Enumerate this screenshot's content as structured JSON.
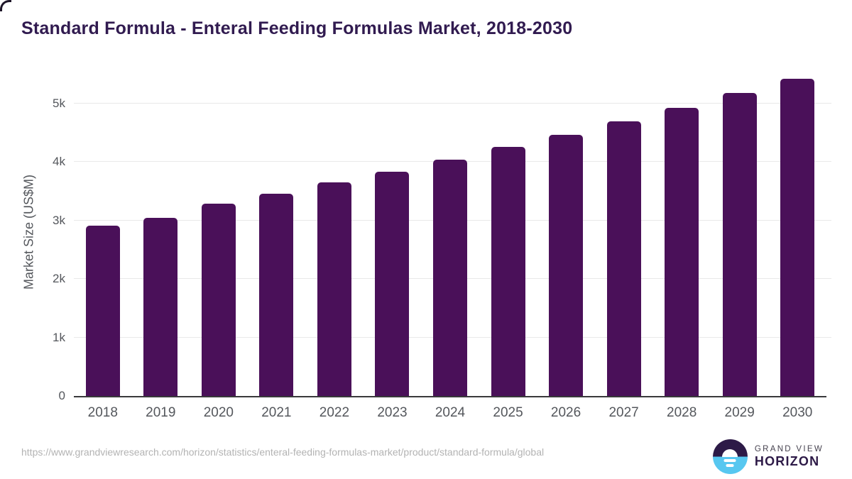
{
  "chart_data": {
    "type": "bar",
    "title": "Standard Formula - Enteral Feeding Formulas Market, 2018-2030",
    "categories": [
      "2018",
      "2019",
      "2020",
      "2021",
      "2022",
      "2023",
      "2024",
      "2025",
      "2026",
      "2027",
      "2028",
      "2029",
      "2030"
    ],
    "values": [
      2910,
      3040,
      3290,
      3455,
      3645,
      3835,
      4035,
      4255,
      4465,
      4690,
      4920,
      5170,
      5420
    ],
    "xlabel": "",
    "ylabel": "Market Size (US$M)",
    "ylim": [
      0,
      5600
    ],
    "yticks": [
      {
        "value": 0,
        "label": "0"
      },
      {
        "value": 1000,
        "label": "1k"
      },
      {
        "value": 2000,
        "label": "2k"
      },
      {
        "value": 3000,
        "label": "3k"
      },
      {
        "value": 4000,
        "label": "4k"
      },
      {
        "value": 5000,
        "label": "5k"
      }
    ],
    "grid": "horizontal",
    "legend": "none",
    "colors": {
      "bar": "#4a1059",
      "title": "#311b50",
      "axis_label": "#54575c",
      "gridline": "#e9e9e9",
      "axis_line": "#39393b"
    }
  },
  "footer": {
    "source_url": "https://www.grandviewresearch.com/horizon/statistics/enteral-feeding-formulas-market/product/standard-formula/global",
    "logo": {
      "icon": "horizon-sunset-icon",
      "line1": "GRAND VIEW",
      "line2": "HORIZON",
      "colors": {
        "dark": "#2d1a47",
        "blue": "#57c7f0"
      }
    }
  }
}
